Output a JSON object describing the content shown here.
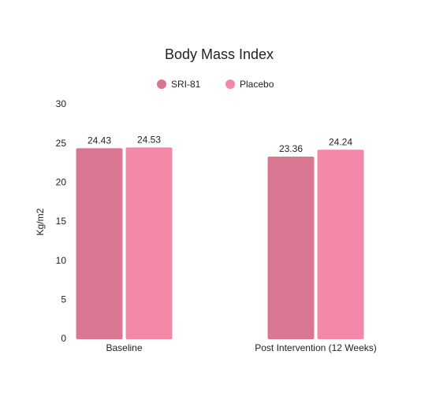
{
  "chart_data": {
    "type": "bar",
    "title": "Body Mass Index",
    "y_label": "Kg/m2",
    "categories": [
      "Baseline",
      "Post Intervention (12 Weeks)"
    ],
    "series": [
      {
        "name": "SRI-81",
        "color": "#d97793",
        "values": [
          24.43,
          23.36
        ]
      },
      {
        "name": "Placebo",
        "color": "#f388a8",
        "values": [
          24.53,
          24.24
        ]
      }
    ],
    "ylim": [
      0,
      30
    ],
    "yticks": [
      0,
      5,
      10,
      15,
      20,
      25,
      30
    ],
    "grid": false
  }
}
